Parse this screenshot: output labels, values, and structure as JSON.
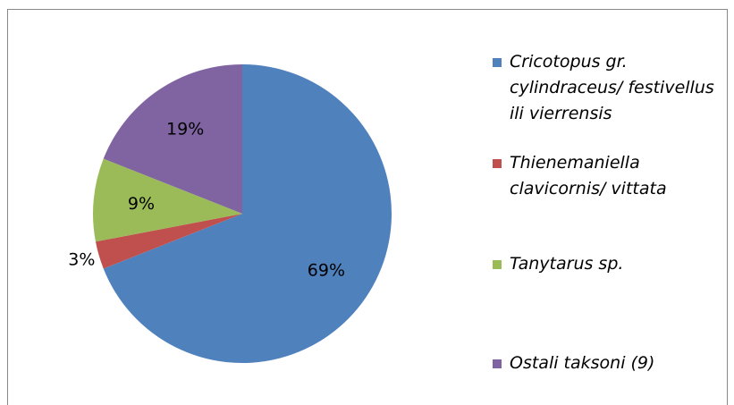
{
  "chart_data": {
    "type": "pie",
    "categories": [
      "Cricotopus gr. cylindraceus/ festivellus ili vierrensis",
      "Thienemaniella clavicornis/ vittata",
      "Tanytarus sp.",
      "Ostali taksoni (9)"
    ],
    "values": [
      69,
      3,
      9,
      19
    ],
    "value_labels": [
      "69%",
      "3%",
      "9%",
      "19%"
    ],
    "colors": [
      "#4f81bd",
      "#c0504d",
      "#9bbb59",
      "#8064a2"
    ],
    "legend": "right"
  }
}
